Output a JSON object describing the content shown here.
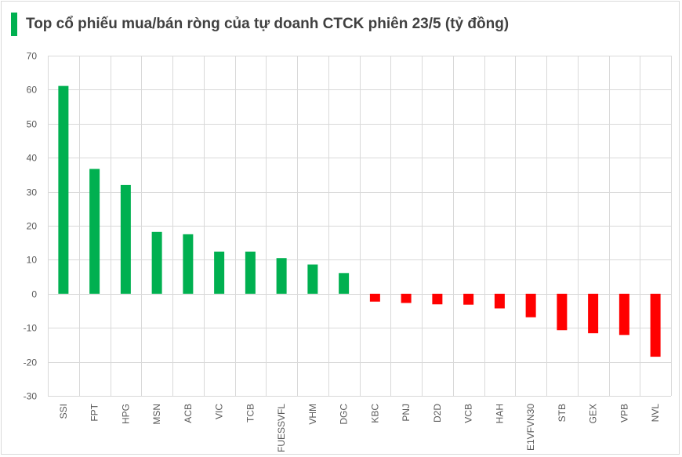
{
  "title": "Top cổ phiếu mua/bán ròng của tự doanh CTCK phiên 23/5 (tỷ đồng)",
  "colors": {
    "accent": "#00b050",
    "positive": "#00b050",
    "negative": "#ff0000"
  },
  "chart_data": {
    "type": "bar",
    "title": "Top cổ phiếu mua/bán ròng của tự doanh CTCK phiên 23/5 (tỷ đồng)",
    "xlabel": "",
    "ylabel": "",
    "ylim": [
      -30,
      70
    ],
    "yticks": [
      70,
      60,
      50,
      40,
      30,
      20,
      10,
      0,
      -10,
      -20,
      -30
    ],
    "grid": true,
    "categories": [
      "SSI",
      "FPT",
      "HPG",
      "MSN",
      "ACB",
      "VIC",
      "TCB",
      "FUESSVFL",
      "VHM",
      "DGC",
      "KBC",
      "PNJ",
      "D2D",
      "VCB",
      "HAH",
      "E1VFVN30",
      "STB",
      "GEX",
      "VPB",
      "NVL"
    ],
    "values": [
      61.1,
      36.7,
      32.0,
      18.2,
      17.5,
      12.4,
      12.4,
      10.5,
      8.6,
      6.1,
      -2.3,
      -2.7,
      -3.1,
      -3.2,
      -4.3,
      -6.9,
      -10.7,
      -11.6,
      -12.1,
      -18.5
    ]
  }
}
